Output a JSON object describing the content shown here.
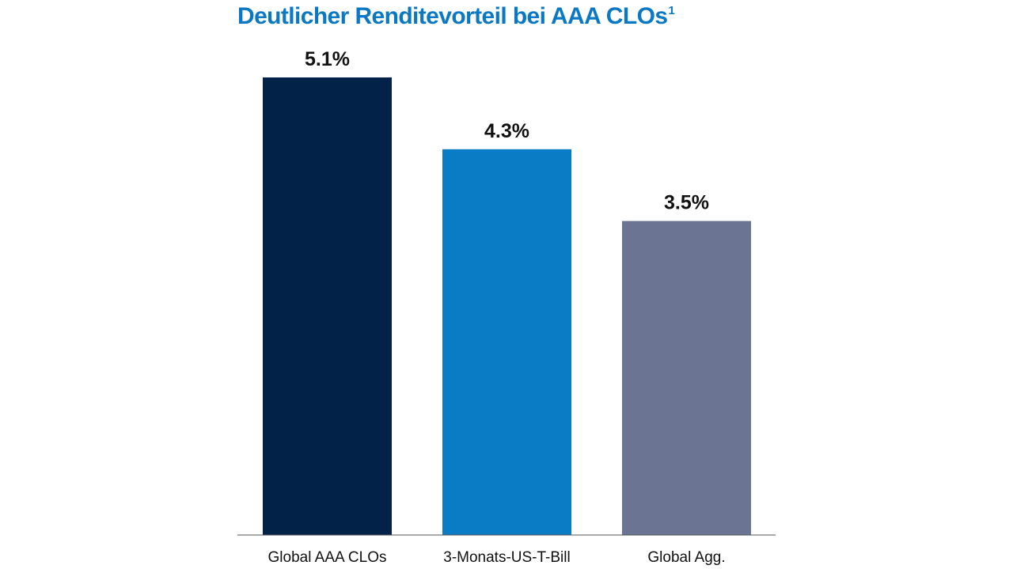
{
  "chart_data": {
    "type": "bar",
    "title": "Deutlicher Renditevorteil bei AAA CLOs",
    "title_footnote": "1",
    "categories": [
      "Global AAA CLOs",
      "3-Monats-US-T-Bill",
      "Global Agg."
    ],
    "values": [
      5.1,
      4.3,
      3.5
    ],
    "value_labels": [
      "5.1%",
      "4.3%",
      "3.5%"
    ],
    "colors": [
      "#022247",
      "#0a7bc5",
      "#6b7593"
    ],
    "xlabel": "",
    "ylabel": "",
    "ylim": [
      0,
      5.1
    ],
    "grid": false,
    "legend": "none"
  }
}
